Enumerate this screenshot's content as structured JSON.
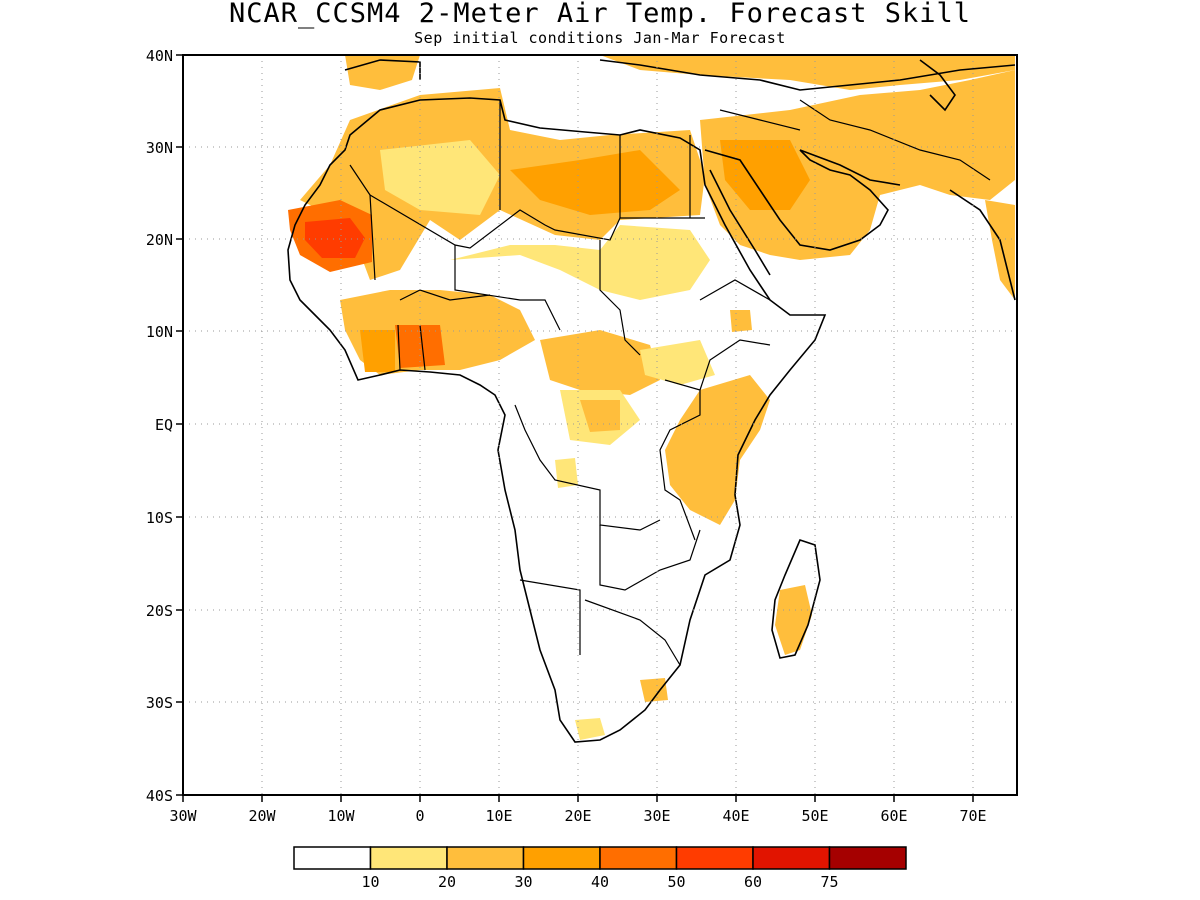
{
  "title": "NCAR_CCSM4 2-Meter Air Temp. Forecast Skill",
  "subtitle": "Sep initial conditions  Jan-Mar Forecast",
  "map": {
    "lat_labels": [
      "40N",
      "30N",
      "20N",
      "10N",
      "EQ",
      "10S",
      "20S",
      "30S",
      "40S"
    ],
    "lon_labels": [
      "30W",
      "20W",
      "10W",
      "0",
      "10E",
      "20E",
      "30E",
      "40E",
      "50E",
      "60E",
      "70E"
    ],
    "lat_range": [
      -40,
      40
    ],
    "lon_range": [
      -30,
      75
    ],
    "grid": "dotted"
  },
  "legend": {
    "labels": [
      "10",
      "20",
      "30",
      "40",
      "50",
      "60",
      "75"
    ],
    "colors": [
      "#ffffff",
      "#ffe678",
      "#ffbe3c",
      "#ffa000",
      "#ff6e00",
      "#ff3c00",
      "#e11400",
      "#a50000"
    ]
  }
}
